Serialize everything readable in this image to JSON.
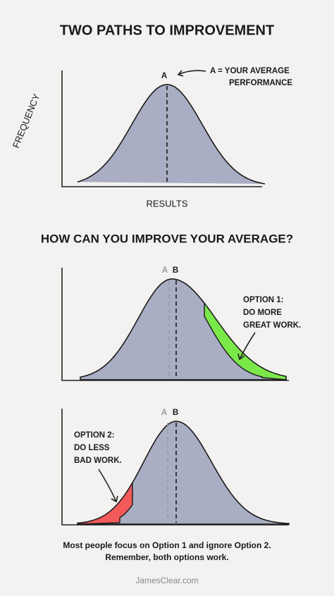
{
  "title": "TWO PATHS TO IMPROVEMENT",
  "panel1": {
    "y_axis_label": "FREQUENCY",
    "x_axis_label": "RESULTS",
    "marker": "A",
    "annotation": [
      "A = YOUR AVERAGE",
      "PERFORMANCE"
    ]
  },
  "question": "HOW CAN YOU IMPROVE YOUR AVERAGE?",
  "panel2": {
    "marker_old": "A",
    "marker_new": "B",
    "option": [
      "OPTION 1:",
      "DO MORE",
      "GREAT WORK."
    ]
  },
  "panel3": {
    "marker_old": "A",
    "marker_new": "B",
    "option": [
      "OPTION 2:",
      "DO LESS",
      "BAD WORK."
    ]
  },
  "footer": [
    "Most people focus on Option 1 and ignore Option 2.",
    "Remember, both options work."
  ],
  "credit": "JamesClear.com"
}
